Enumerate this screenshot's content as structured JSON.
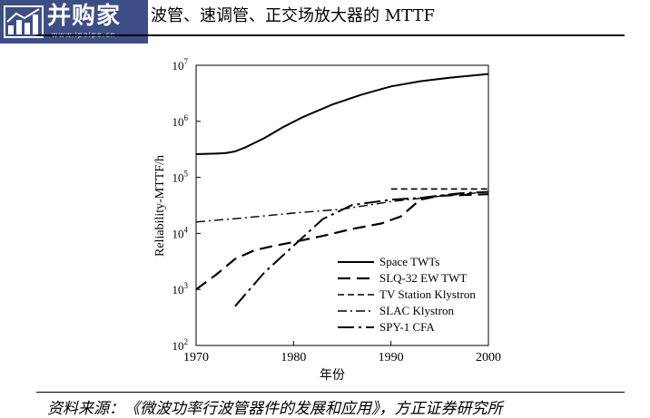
{
  "header": {
    "logo_text": "并购家",
    "logo_url": "www.ipoipo.cn",
    "title": "波管、速调管、正交场放大器的 MTTF"
  },
  "footer": {
    "source": "资料来源：《微波功率行波管器件的发展和应用》，方正证券研究所"
  },
  "chart_data": {
    "type": "line",
    "title": "",
    "xlabel": "年份",
    "ylabel": "Reliability-MTTF/h",
    "xlim": [
      1970,
      2000
    ],
    "ylim": [
      100,
      10000000
    ],
    "yscale": "log",
    "x_ticks": [
      "1970",
      "1980",
      "1990",
      "2000"
    ],
    "y_ticks": [
      {
        "base": "10",
        "exp": "2"
      },
      {
        "base": "10",
        "exp": "3"
      },
      {
        "base": "10",
        "exp": "4"
      },
      {
        "base": "10",
        "exp": "5"
      },
      {
        "base": "10",
        "exp": "6"
      },
      {
        "base": "10",
        "exp": "7"
      }
    ],
    "grid": false,
    "legend_position": "bottom-right",
    "series": [
      {
        "name": "Space TWTs",
        "style": "solid",
        "x": [
          1970,
          1972,
          1973,
          1974,
          1975,
          1977,
          1979,
          1981,
          1984,
          1987,
          1990,
          1993,
          1996,
          2000
        ],
        "y": [
          260000,
          265000,
          270000,
          290000,
          340000,
          500000,
          800000,
          1200000,
          2000000,
          3000000,
          4200000,
          5200000,
          6000000,
          7000000
        ]
      },
      {
        "name": "SLQ-32 EW TWT",
        "style": "dashed",
        "x": [
          1970,
          1972,
          1974,
          1976,
          1978,
          1980,
          1983,
          1986,
          1989,
          1991,
          1993,
          1995,
          2000
        ],
        "y": [
          1000,
          1800,
          3500,
          5000,
          6000,
          7000,
          9000,
          12000,
          15000,
          20000,
          40000,
          47000,
          50000
        ]
      },
      {
        "name": "TV Station Klystron",
        "style": "short-dashed",
        "x": [
          1990,
          1995,
          2000
        ],
        "y": [
          62000,
          62000,
          62000
        ]
      },
      {
        "name": "SLAC Klystron",
        "style": "dash-dot",
        "x": [
          1970,
          1975,
          1980,
          1985,
          1990,
          1995,
          2000
        ],
        "y": [
          16000,
          19000,
          23000,
          27000,
          37000,
          46000,
          55000
        ]
      },
      {
        "name": "SPY-1 CFA",
        "style": "long-dash-dot",
        "x": [
          1974,
          1977,
          1980,
          1983,
          1986,
          1990,
          1993,
          1997,
          2000
        ],
        "y": [
          500,
          2000,
          6000,
          18000,
          32000,
          40000,
          43000,
          52000,
          55000
        ]
      }
    ]
  }
}
